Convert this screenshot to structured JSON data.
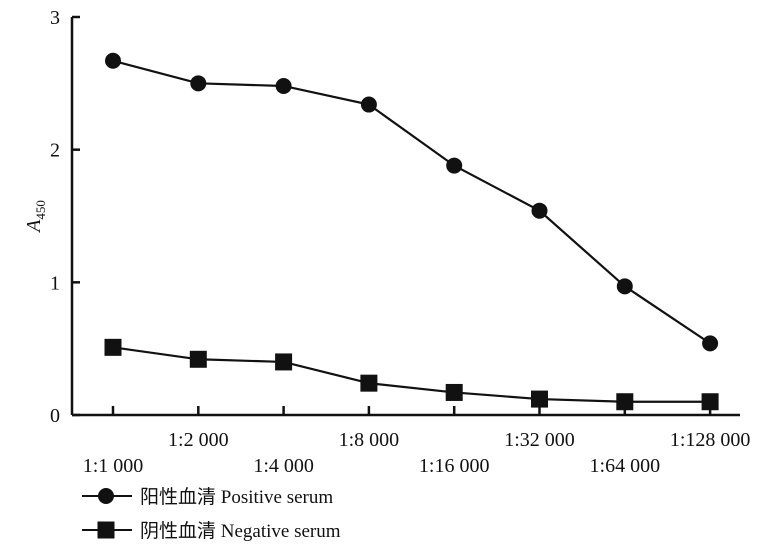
{
  "chart_data": {
    "type": "line",
    "categories": [
      "1:1 000",
      "1:2 000",
      "1:4 000",
      "1:8 000",
      "1:16 000",
      "1:32 000",
      "1:64 000",
      "1:128 000"
    ],
    "x_label_rows": [
      1,
      0,
      1,
      0,
      1,
      0,
      1,
      0
    ],
    "ylabel": "A",
    "ylabel_subscript": "450",
    "ylim": [
      0,
      3
    ],
    "yticks": [
      0,
      1,
      2,
      3
    ],
    "grid": false,
    "legend_position": "bottom-left",
    "series": [
      {
        "name": "阳性血清 Positive serum",
        "marker": "circle",
        "color": "#111111",
        "values": [
          2.67,
          2.5,
          2.48,
          2.34,
          1.88,
          1.54,
          0.97,
          0.54
        ]
      },
      {
        "name": "阴性血清 Negative serum",
        "marker": "square",
        "color": "#111111",
        "values": [
          0.51,
          0.42,
          0.4,
          0.24,
          0.17,
          0.12,
          0.1,
          0.1
        ]
      }
    ]
  }
}
